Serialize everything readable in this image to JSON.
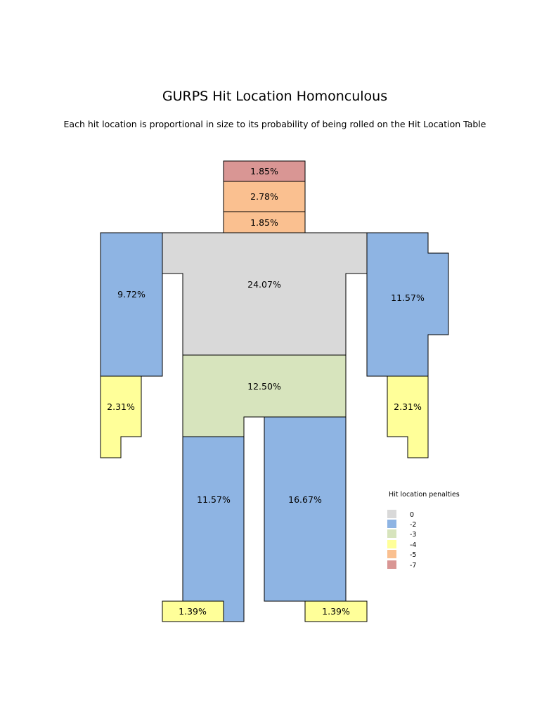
{
  "title": "GURPS Hit Location Homonculous",
  "subtitle": "Each hit location is proportional in size to its probability of being rolled on the Hit Location Table",
  "palette": {
    "0": "#d9d9d9",
    "-2": "#8eb4e3",
    "-3": "#d7e4bd",
    "-4": "#ffff99",
    "-5": "#fac090",
    "-7": "#d99694"
  },
  "regions": {
    "skull": {
      "label": "1.85%",
      "penalty": "-7"
    },
    "face": {
      "label": "2.78%",
      "penalty": "-5"
    },
    "neck": {
      "label": "1.85%",
      "penalty": "-5"
    },
    "torso": {
      "label": "24.07%",
      "penalty": "0"
    },
    "left_arm": {
      "label": "9.72%",
      "penalty": "-2"
    },
    "right_arm": {
      "label": "11.57%",
      "penalty": "-2"
    },
    "left_hand": {
      "label": "2.31%",
      "penalty": "-4"
    },
    "right_hand": {
      "label": "2.31%",
      "penalty": "-4"
    },
    "groin": {
      "label": "12.50%",
      "penalty": "-3"
    },
    "left_leg": {
      "label": "11.57%",
      "penalty": "-2"
    },
    "right_leg": {
      "label": "16.67%",
      "penalty": "-2"
    },
    "left_foot": {
      "label": "1.39%",
      "penalty": "-4"
    },
    "right_foot": {
      "label": "1.39%",
      "penalty": "-4"
    }
  },
  "legend": {
    "title": "Hit location penalties",
    "items": [
      {
        "label": "0",
        "color": "#d9d9d9"
      },
      {
        "label": "-2",
        "color": "#8eb4e3"
      },
      {
        "label": "-3",
        "color": "#d7e4bd"
      },
      {
        "label": "-4",
        "color": "#ffff99"
      },
      {
        "label": "-5",
        "color": "#fac090"
      },
      {
        "label": "-7",
        "color": "#d99694"
      }
    ]
  }
}
